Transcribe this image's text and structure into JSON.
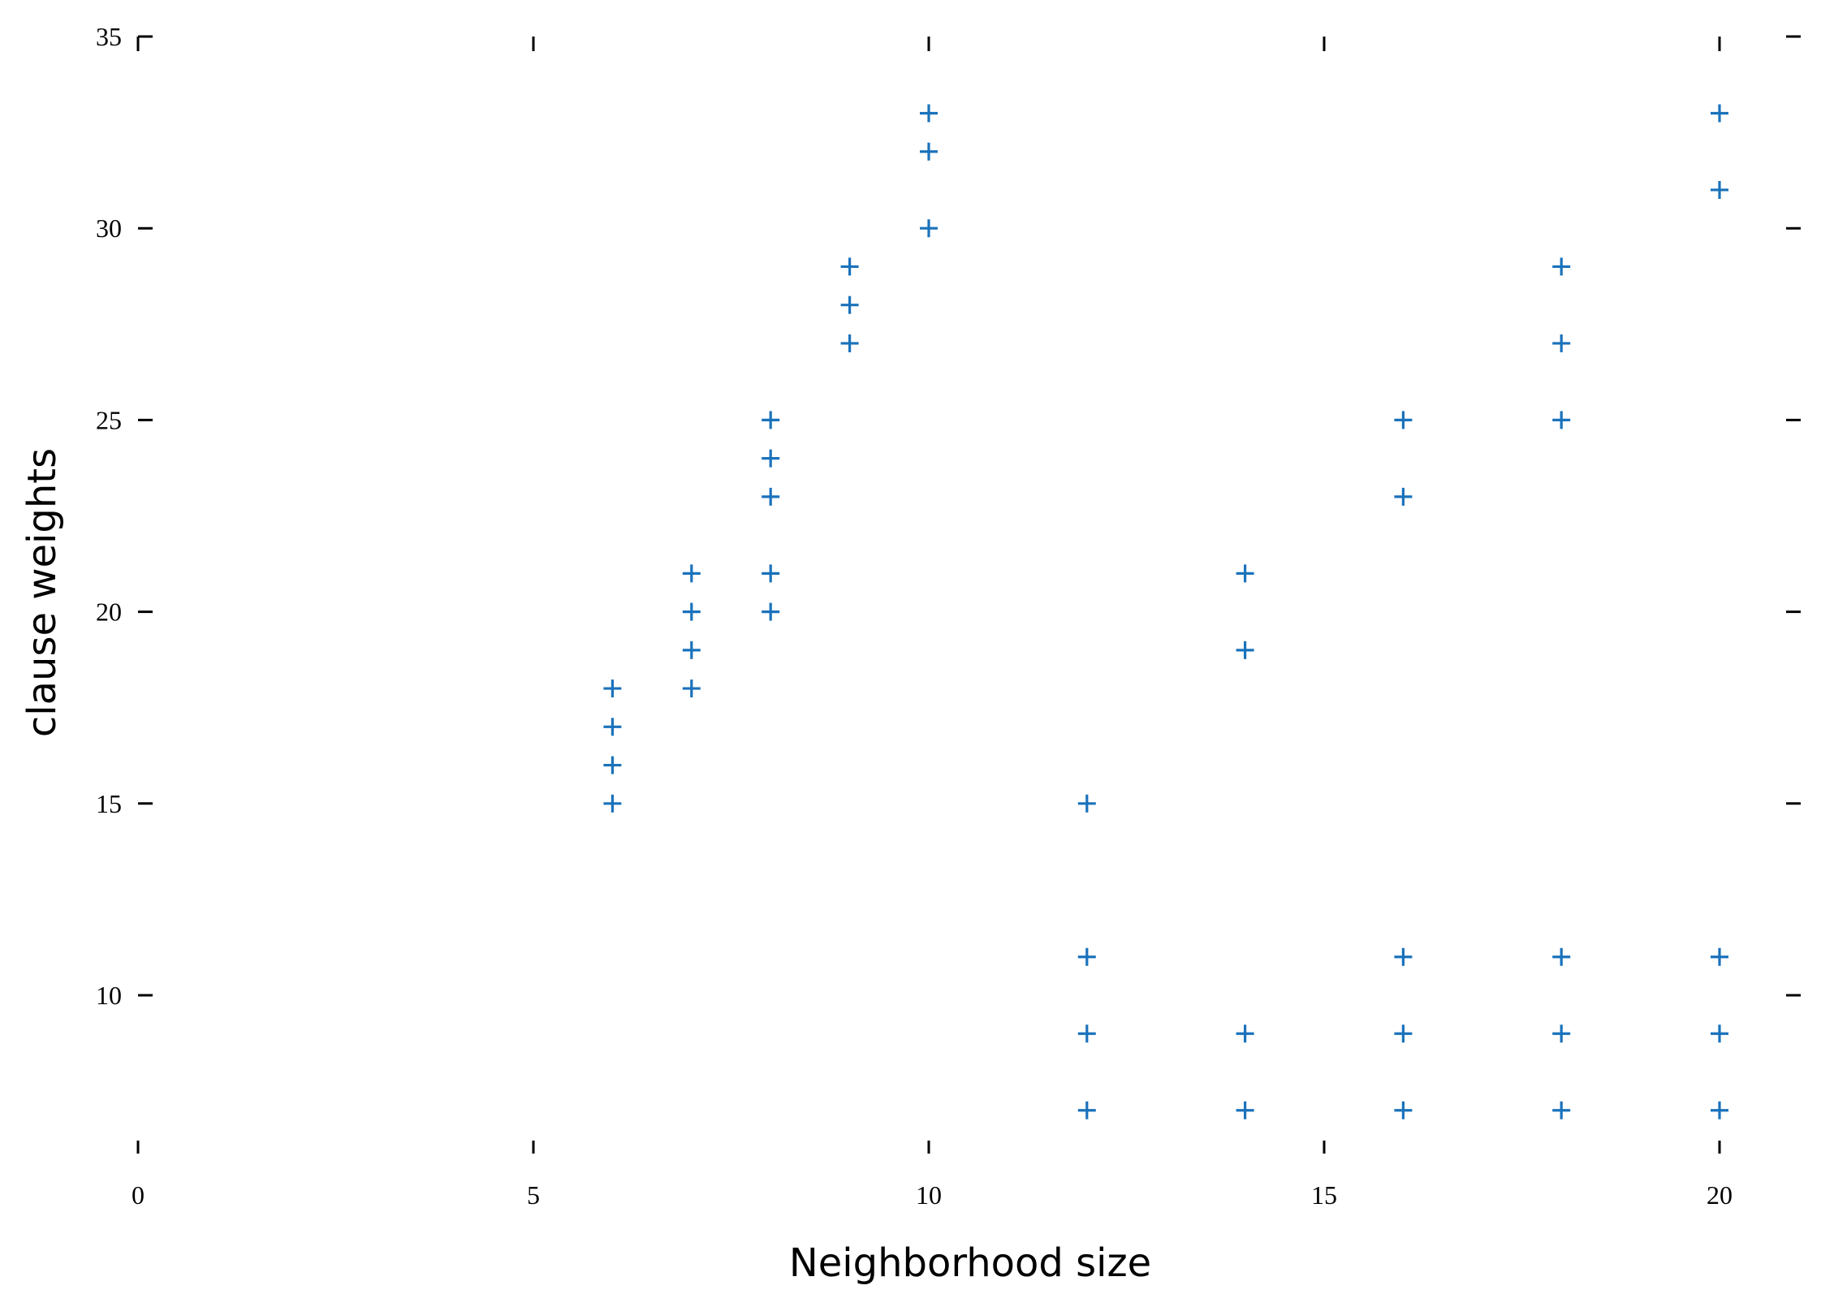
{
  "chart_data": {
    "type": "scatter",
    "title": "",
    "xlabel": "Neighborhood size",
    "ylabel": "clause weights",
    "xlim": [
      0,
      21
    ],
    "ylim": [
      6.3,
      35
    ],
    "x_ticks": [
      0,
      5,
      10,
      15,
      20
    ],
    "y_ticks": [
      10,
      15,
      20,
      25,
      30,
      35
    ],
    "grid": false,
    "marker": "plus",
    "color": "#1a72bb",
    "points": [
      [
        6,
        15
      ],
      [
        6,
        16
      ],
      [
        6,
        17
      ],
      [
        6,
        18
      ],
      [
        7,
        18
      ],
      [
        7,
        19
      ],
      [
        7,
        20
      ],
      [
        7,
        21
      ],
      [
        8,
        20
      ],
      [
        8,
        21
      ],
      [
        8,
        23
      ],
      [
        8,
        24
      ],
      [
        8,
        25
      ],
      [
        9,
        27
      ],
      [
        9,
        28
      ],
      [
        9,
        29
      ],
      [
        10,
        30
      ],
      [
        10,
        32
      ],
      [
        10,
        33
      ],
      [
        12,
        7
      ],
      [
        12,
        9
      ],
      [
        12,
        11
      ],
      [
        12,
        15
      ],
      [
        14,
        7
      ],
      [
        14,
        9
      ],
      [
        14,
        19
      ],
      [
        14,
        21
      ],
      [
        16,
        7
      ],
      [
        16,
        9
      ],
      [
        16,
        11
      ],
      [
        16,
        23
      ],
      [
        16,
        25
      ],
      [
        18,
        7
      ],
      [
        18,
        9
      ],
      [
        18,
        11
      ],
      [
        18,
        25
      ],
      [
        18,
        27
      ],
      [
        18,
        29
      ],
      [
        20,
        7
      ],
      [
        20,
        9
      ],
      [
        20,
        11
      ],
      [
        20,
        31
      ],
      [
        20,
        33
      ]
    ]
  }
}
